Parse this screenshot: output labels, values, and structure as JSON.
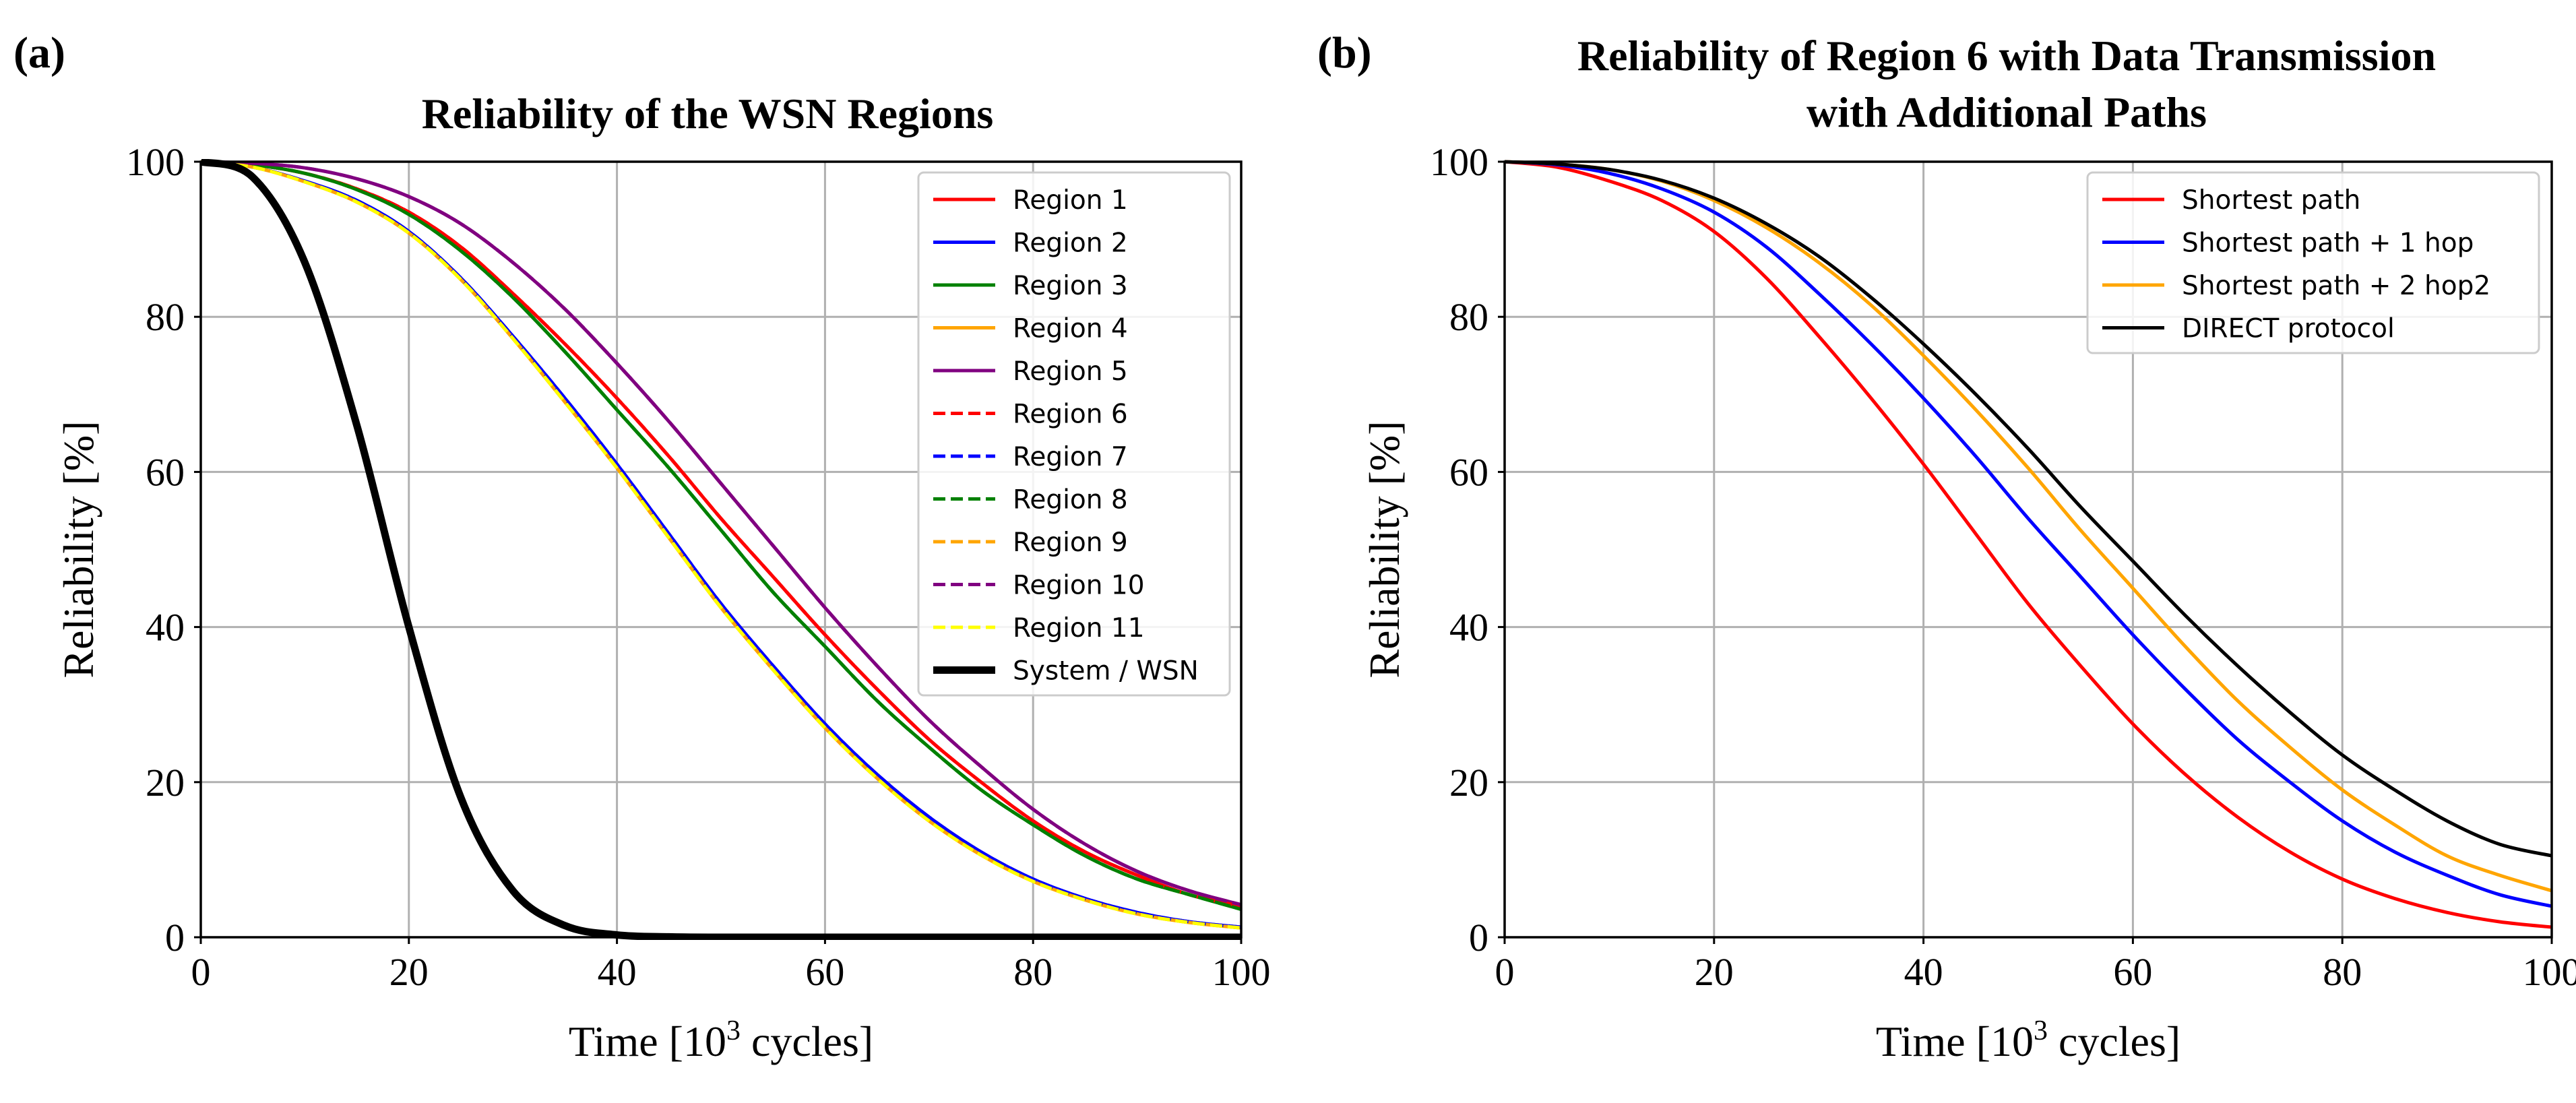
{
  "chart_data": [
    {
      "panel": "(a)",
      "type": "line",
      "title": [
        "Reliability of the WSN Regions"
      ],
      "xlabel_main": "Time [10",
      "xlabel_sup": "3",
      "xlabel_end": " cycles]",
      "ylabel": "Reliability [%]",
      "xlim": [
        0,
        100
      ],
      "ylim": [
        0,
        100
      ],
      "xticks": [
        "0",
        "20",
        "40",
        "60",
        "80",
        "100"
      ],
      "yticks": [
        "0",
        "20",
        "40",
        "60",
        "80",
        "100"
      ],
      "grid": true,
      "legend_position": "top-right",
      "x": [
        0,
        5,
        10,
        15,
        20,
        25,
        30,
        35,
        40,
        45,
        50,
        55,
        60,
        65,
        70,
        75,
        80,
        85,
        90,
        95,
        100
      ],
      "series": [
        {
          "name": "Region 1",
          "color": "#ff0000",
          "dash": "solid",
          "width": "normal",
          "values": [
            100,
            99.6,
            98.5,
            96.5,
            93.5,
            89,
            83,
            76.5,
            69.5,
            62,
            54,
            46.5,
            39,
            32,
            25.5,
            20,
            15,
            11,
            8,
            5.5,
            4
          ]
        },
        {
          "name": "Region 2",
          "color": "#0000ff",
          "dash": "solid",
          "width": "normal",
          "values": [
            100,
            99.3,
            97.5,
            95,
            91,
            85,
            77.5,
            69.5,
            61,
            52,
            43,
            35,
            27.5,
            21,
            15.5,
            11,
            7.5,
            5,
            3.2,
            2,
            1.3
          ]
        },
        {
          "name": "Region 3",
          "color": "#008000",
          "dash": "solid",
          "width": "normal",
          "values": [
            100,
            99.6,
            98.5,
            96.4,
            93.2,
            88.5,
            82.5,
            75.5,
            68,
            60.5,
            52.5,
            44.5,
            37.5,
            30.5,
            24.5,
            19,
            14.5,
            10.5,
            7.5,
            5.5,
            3.6
          ]
        },
        {
          "name": "Region 4",
          "color": "#ffa500",
          "dash": "solid",
          "width": "normal",
          "values": [
            100,
            99.3,
            97.4,
            94.8,
            90.8,
            84.8,
            77.2,
            69,
            60.5,
            51.5,
            42.5,
            34.5,
            27,
            20.5,
            15,
            10.6,
            7.2,
            4.8,
            3,
            1.9,
            1.2
          ]
        },
        {
          "name": "Region 5",
          "color": "#800080",
          "dash": "solid",
          "width": "normal",
          "values": [
            100,
            99.8,
            99.2,
            97.8,
            95.5,
            92,
            87,
            81,
            74,
            66.5,
            58.5,
            50.5,
            42.5,
            35,
            28,
            22,
            16.5,
            12,
            8.5,
            6,
            4.2
          ]
        },
        {
          "name": "Region 6",
          "color": "#ff0000",
          "dash": "dashed",
          "width": "normal",
          "values": [
            100,
            99.6,
            98.5,
            96.5,
            93.5,
            89,
            83,
            76.5,
            69.5,
            62,
            54,
            46.5,
            39,
            32,
            25.5,
            20,
            15,
            11,
            8,
            5.5,
            4
          ]
        },
        {
          "name": "Region 7",
          "color": "#0000ff",
          "dash": "dashed",
          "width": "normal",
          "values": [
            100,
            99.3,
            97.5,
            95,
            91,
            85,
            77.5,
            69.5,
            61,
            52,
            43,
            35,
            27.5,
            21,
            15.5,
            11,
            7.5,
            5,
            3.2,
            2,
            1.3
          ]
        },
        {
          "name": "Region 8",
          "color": "#008000",
          "dash": "dashed",
          "width": "normal",
          "values": [
            100,
            99.6,
            98.5,
            96.4,
            93.2,
            88.5,
            82.5,
            75.5,
            68,
            60.5,
            52.5,
            44.5,
            37.5,
            30.5,
            24.5,
            19,
            14.5,
            10.5,
            7.5,
            5.5,
            3.6
          ]
        },
        {
          "name": "Region 9",
          "color": "#ffa500",
          "dash": "dashed",
          "width": "normal",
          "values": [
            100,
            99.3,
            97.4,
            94.8,
            90.8,
            84.8,
            77.2,
            69,
            60.5,
            51.5,
            42.5,
            34.5,
            27,
            20.5,
            15,
            10.6,
            7.2,
            4.8,
            3,
            1.9,
            1.2
          ]
        },
        {
          "name": "Region 10",
          "color": "#800080",
          "dash": "dashed",
          "width": "normal",
          "values": [
            100,
            99.8,
            99.2,
            97.8,
            95.5,
            92,
            87,
            81,
            74,
            66.5,
            58.5,
            50.5,
            42.5,
            35,
            28,
            22,
            16.5,
            12,
            8.5,
            6,
            4.2
          ]
        },
        {
          "name": "Region 11",
          "color": "#ffff00",
          "dash": "dashed",
          "width": "normal",
          "values": [
            100,
            99.3,
            97.4,
            94.8,
            90.8,
            84.8,
            77.2,
            69,
            60.5,
            51.5,
            42.5,
            34.5,
            27,
            20.5,
            15,
            10.6,
            7.2,
            4.8,
            3,
            1.9,
            1.2
          ]
        },
        {
          "name": "System / WSN",
          "color": "#000000",
          "dash": "solid",
          "width": "thick",
          "values": [
            100,
            98,
            87,
            66,
            40,
            18,
            6,
            1.5,
            0.3,
            0.05,
            0,
            0,
            0,
            0,
            0,
            0,
            0,
            0,
            0,
            0,
            0
          ]
        }
      ]
    },
    {
      "panel": "(b)",
      "type": "line",
      "title": [
        "Reliability of Region 6 with Data Transmission",
        "with Additional Paths"
      ],
      "xlabel_main": "Time [10",
      "xlabel_sup": "3",
      "xlabel_end": " cycles]",
      "ylabel": "Reliability [%]",
      "xlim": [
        0,
        100
      ],
      "ylim": [
        0,
        100
      ],
      "xticks": [
        "0",
        "20",
        "40",
        "60",
        "80",
        "100"
      ],
      "yticks": [
        "0",
        "20",
        "40",
        "60",
        "80",
        "100"
      ],
      "grid": true,
      "legend_position": "top-right",
      "x": [
        0,
        5,
        10,
        15,
        20,
        25,
        30,
        35,
        40,
        45,
        50,
        55,
        60,
        65,
        70,
        75,
        80,
        85,
        90,
        95,
        100
      ],
      "series": [
        {
          "name": "Shortest path",
          "color": "#ff0000",
          "dash": "solid",
          "width": "normal",
          "values": [
            100,
            99.3,
            97.5,
            95,
            91,
            85,
            77.5,
            69.5,
            61,
            52,
            43,
            35,
            27.5,
            21,
            15.5,
            11,
            7.5,
            5,
            3.2,
            2,
            1.3
          ]
        },
        {
          "name": "Shortest path + 1 hop",
          "color": "#0000ff",
          "dash": "solid",
          "width": "normal",
          "values": [
            100,
            99.6,
            98.5,
            96.5,
            93.5,
            89,
            83,
            76.5,
            69.5,
            62,
            54,
            46.5,
            39,
            32,
            25.5,
            20,
            15,
            11,
            8,
            5.5,
            4
          ]
        },
        {
          "name": "Shortest path + 2 hop2",
          "color": "#ffa500",
          "dash": "solid",
          "width": "normal",
          "values": [
            100,
            99.7,
            99,
            97.5,
            95,
            91.5,
            87,
            81.5,
            75,
            68,
            60.5,
            52.5,
            45,
            37.5,
            30.5,
            24.5,
            19,
            14.5,
            10.5,
            8,
            6
          ]
        },
        {
          "name": "DIRECT protocol",
          "color": "#000000",
          "dash": "solid",
          "width": "normal",
          "values": [
            100,
            99.7,
            99,
            97.6,
            95.3,
            92,
            87.8,
            82.5,
            76.5,
            70,
            63,
            55.5,
            48.5,
            41.5,
            35,
            29,
            23.5,
            19,
            15,
            12,
            10.5
          ]
        }
      ]
    }
  ]
}
